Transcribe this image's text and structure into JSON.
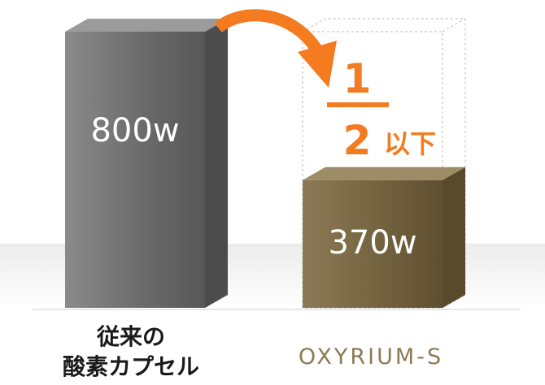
{
  "chart_data": {
    "type": "bar",
    "categories": [
      "従来の酸素カプセル",
      "OXYRIUM-S"
    ],
    "values": [
      800,
      370
    ],
    "value_labels": [
      "800w",
      "370w"
    ],
    "unit": "w",
    "ylim": [
      0,
      800
    ],
    "grid": false,
    "category_label_lines": [
      [
        "従来の",
        "酸素カプセル"
      ],
      [
        "OXYRIUM-S"
      ]
    ],
    "annotation": {
      "numerator": "1",
      "denominator": "2",
      "suffix": "以下"
    },
    "colors": {
      "bar_conventional": "#6e6e6e",
      "bar_oxyrium": "#7a6a48",
      "accent": "#f47b20",
      "label_text": "#1a1a1a",
      "logo_text": "#8c7a55"
    }
  }
}
